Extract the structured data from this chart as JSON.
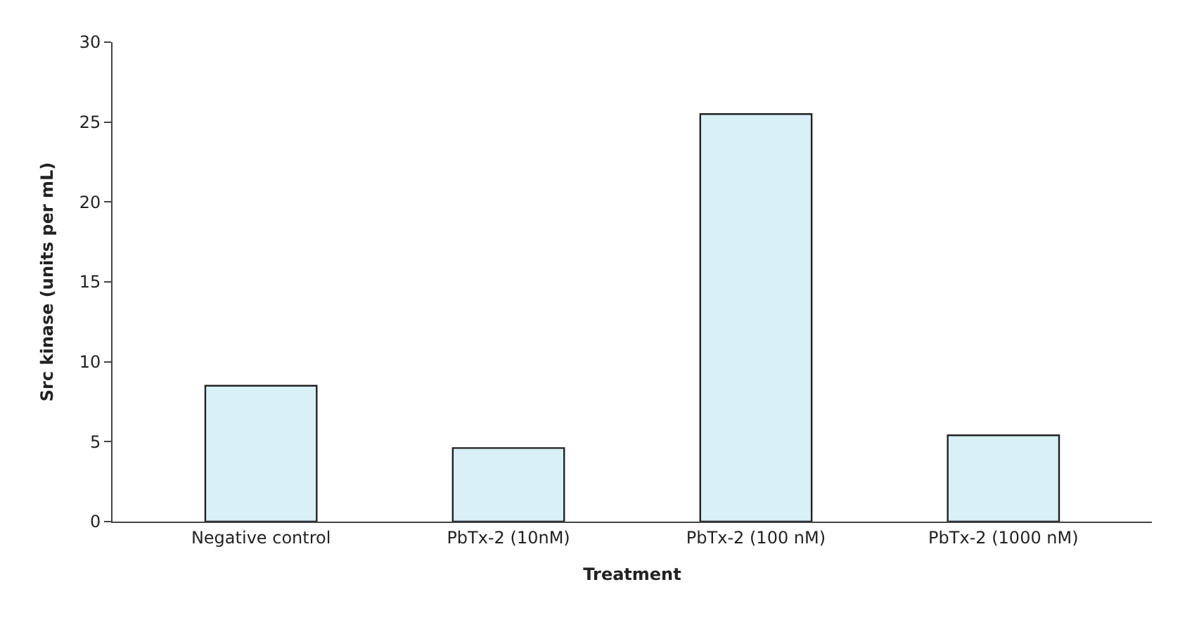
{
  "chart_data": {
    "type": "bar",
    "xlabel": "Treatment",
    "ylabel": "Src kinase (units per mL)",
    "categories": [
      "Negative control",
      "PbTx-2 (10nM)",
      "PbTx-2 (100 nM)",
      "PbTx-2 (1000 nM)"
    ],
    "values": [
      8.5,
      4.6,
      25.5,
      5.4
    ],
    "color": "#d8f0f6",
    "ylim": [
      0,
      30
    ],
    "yticks": [
      0,
      5,
      10,
      15,
      20,
      25,
      30
    ],
    "legend": false
  }
}
